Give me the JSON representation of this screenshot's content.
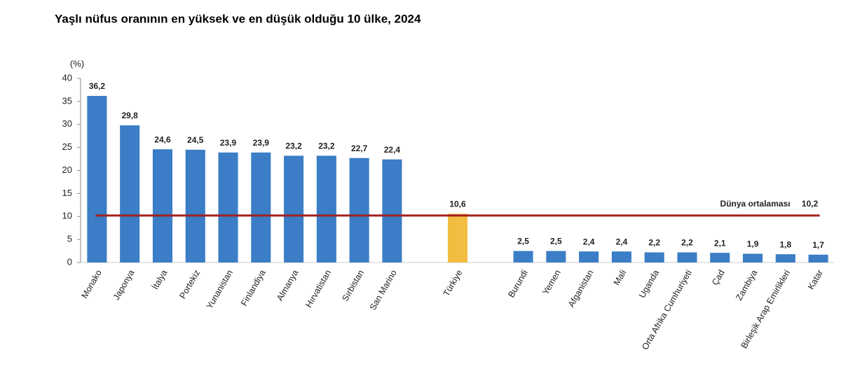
{
  "chart_data": {
    "type": "bar",
    "title": "Yaşlı nüfus oranının en yüksek ve en düşük olduğu 10 ülke, 2024",
    "y_axis_label": "(%)",
    "categories": [
      "Monako",
      "Japonya",
      "İtalya",
      "Portekiz",
      "Yunanistan",
      "Finlandiya",
      "Almanya",
      "Hırvatistan",
      "Sırbistan",
      "San Marino",
      null,
      "Türkiye",
      null,
      "Burundi",
      "Yemen",
      "Afganistan",
      "Mali",
      "Uganda",
      "Orta Afrika Cumhuriyeti",
      "Çad",
      "Zambiya",
      "Birleşik Arap Emirlikleri",
      "Katar"
    ],
    "values": [
      36.2,
      29.8,
      24.6,
      24.5,
      23.9,
      23.9,
      23.2,
      23.2,
      22.7,
      22.4,
      null,
      10.6,
      null,
      2.5,
      2.5,
      2.4,
      2.4,
      2.2,
      2.2,
      2.1,
      1.9,
      1.8,
      1.7
    ],
    "value_labels": [
      "36,2",
      "29,8",
      "24,6",
      "24,5",
      "23,9",
      "23,9",
      "23,2",
      "23,2",
      "22,7",
      "22,4",
      null,
      "10,6",
      null,
      "2,5",
      "2,5",
      "2,4",
      "2,4",
      "2,2",
      "2,2",
      "2,1",
      "1,9",
      "1,8",
      "1,7"
    ],
    "colors": [
      "#3b7dc6",
      "#3b7dc6",
      "#3b7dc6",
      "#3b7dc6",
      "#3b7dc6",
      "#3b7dc6",
      "#3b7dc6",
      "#3b7dc6",
      "#3b7dc6",
      "#3b7dc6",
      null,
      "#f2be42",
      null,
      "#3b7dc6",
      "#3b7dc6",
      "#3b7dc6",
      "#3b7dc6",
      "#3b7dc6",
      "#3b7dc6",
      "#3b7dc6",
      "#3b7dc6",
      "#3b7dc6",
      "#3b7dc6"
    ],
    "ylim": [
      0,
      40
    ],
    "yticks": [
      0,
      5,
      10,
      15,
      20,
      25,
      30,
      35,
      40
    ],
    "grid": false,
    "reference_line": {
      "label": "Dünya ortalaması",
      "value": 10.2,
      "value_label": "10,2",
      "color": "#a32020"
    }
  }
}
